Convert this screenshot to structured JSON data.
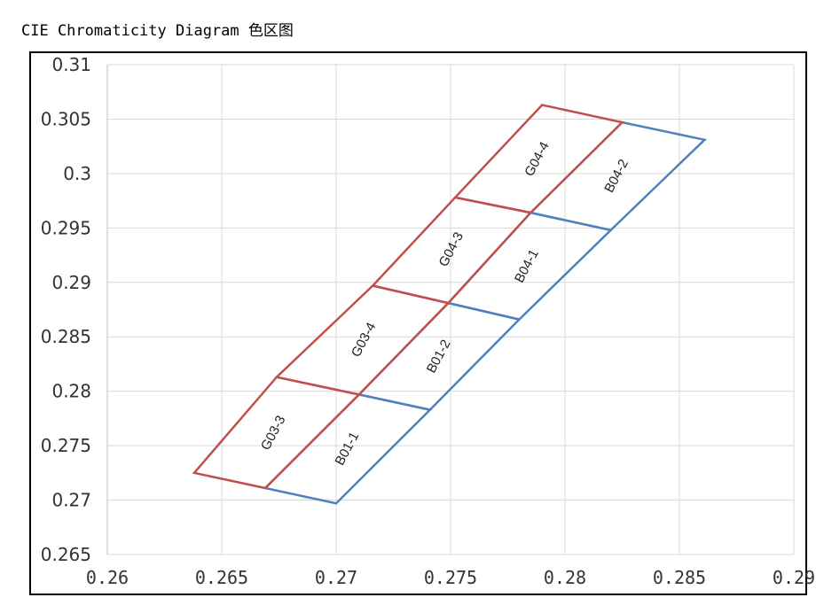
{
  "title": "CIE Chromaticity Diagram 色区图",
  "chart_data": {
    "type": "scatter",
    "title": "CIE Chromaticity Diagram 色区图",
    "xlabel": "",
    "ylabel": "",
    "xlim": [
      0.26,
      0.29
    ],
    "ylim": [
      0.265,
      0.31
    ],
    "x_ticks": [
      "0.26",
      "0.265",
      "0.27",
      "0.275",
      "0.28",
      "0.285",
      "0.29"
    ],
    "y_ticks": [
      "0.31",
      "0.305",
      "0.3",
      "0.295",
      "0.29",
      "0.285",
      "0.28",
      "0.275",
      "0.27",
      "0.265"
    ],
    "grid": true,
    "colors": {
      "G": "#c0504d",
      "B": "#4f81bd"
    },
    "regions": [
      {
        "name": "G03-3",
        "group": "G",
        "polygon": [
          [
            0.2638,
            0.2725
          ],
          [
            0.2674,
            0.2813
          ],
          [
            0.271,
            0.2797
          ],
          [
            0.2669,
            0.2711
          ]
        ]
      },
      {
        "name": "G03-4",
        "group": "G",
        "polygon": [
          [
            0.2674,
            0.2813
          ],
          [
            0.2716,
            0.2897
          ],
          [
            0.2749,
            0.2881
          ],
          [
            0.271,
            0.2797
          ]
        ]
      },
      {
        "name": "G04-3",
        "group": "G",
        "polygon": [
          [
            0.2716,
            0.2897
          ],
          [
            0.2752,
            0.2978
          ],
          [
            0.2785,
            0.2964
          ],
          [
            0.2749,
            0.2881
          ]
        ]
      },
      {
        "name": "G04-4",
        "group": "G",
        "polygon": [
          [
            0.2752,
            0.2978
          ],
          [
            0.279,
            0.3063
          ],
          [
            0.2825,
            0.3047
          ],
          [
            0.2785,
            0.2964
          ]
        ]
      },
      {
        "name": "B01-1",
        "group": "B",
        "polygon": [
          [
            0.2669,
            0.2711
          ],
          [
            0.271,
            0.2797
          ],
          [
            0.2741,
            0.2783
          ],
          [
            0.27,
            0.2697
          ]
        ]
      },
      {
        "name": "B01-2",
        "group": "B",
        "polygon": [
          [
            0.271,
            0.2797
          ],
          [
            0.2749,
            0.2881
          ],
          [
            0.278,
            0.2866
          ],
          [
            0.2741,
            0.2783
          ]
        ]
      },
      {
        "name": "B04-1",
        "group": "B",
        "polygon": [
          [
            0.2749,
            0.2881
          ],
          [
            0.2785,
            0.2964
          ],
          [
            0.282,
            0.2948
          ],
          [
            0.278,
            0.2866
          ]
        ]
      },
      {
        "name": "B04-2",
        "group": "B",
        "polygon": [
          [
            0.2785,
            0.2964
          ],
          [
            0.2825,
            0.3047
          ],
          [
            0.2861,
            0.3031
          ],
          [
            0.282,
            0.2948
          ]
        ]
      }
    ]
  }
}
